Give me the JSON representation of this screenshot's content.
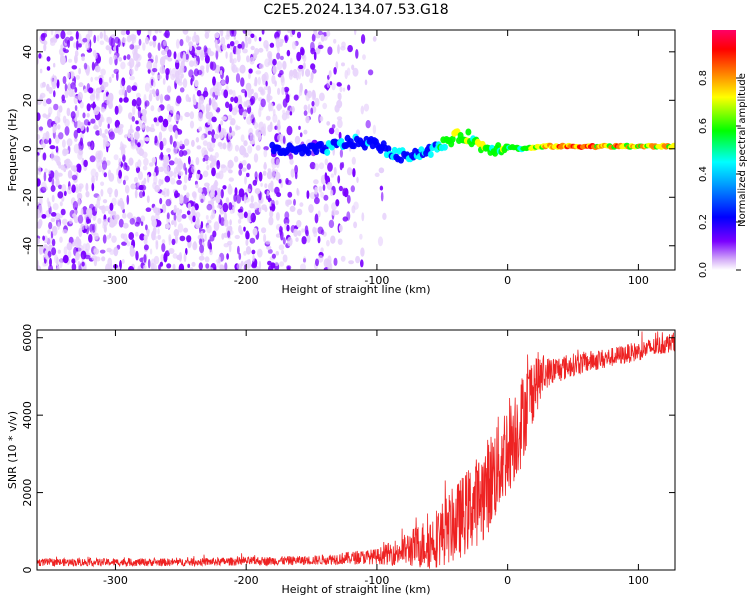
{
  "title": "C2E5.2024.134.07.53.G18",
  "chart_data": [
    {
      "type": "heatmap",
      "xlabel": "Height of straight line (km)",
      "ylabel": "Frequency (Hz)",
      "xlim": [
        -360,
        128
      ],
      "ylim": [
        -50,
        49
      ],
      "xticks": [
        "-300",
        "-200",
        "-100",
        "0",
        "100"
      ],
      "yticks": [
        "-40",
        "-20",
        "0",
        "20",
        "40"
      ],
      "colorbar": {
        "label": "Normalized spectral amplitude",
        "range": [
          0,
          1
        ],
        "ticks": [
          "0.0",
          "0.2",
          "0.4",
          "0.6",
          "0.8"
        ],
        "colormap": [
          "#d8b4f8",
          "#7a00ff",
          "#0000ff",
          "#00ffff",
          "#00ff00",
          "#ffff00",
          "#ff8000",
          "#ff0000",
          "#ff0066"
        ]
      },
      "signal_track": {
        "x": [
          -180,
          -160,
          -140,
          -120,
          -100,
          -85,
          -70,
          -55,
          -40,
          -30,
          -20,
          -10,
          0,
          10,
          30,
          60,
          90,
          110,
          128
        ],
        "frequency_hz": [
          0,
          -1,
          0,
          3,
          2,
          -3,
          -2,
          0,
          5,
          5,
          1,
          0,
          1,
          0,
          1,
          1,
          1,
          1,
          1
        ],
        "amplitude": [
          0.3,
          0.3,
          0.45,
          0.45,
          0.4,
          0.5,
          0.45,
          0.55,
          0.75,
          0.7,
          0.7,
          0.65,
          0.7,
          0.6,
          0.85,
          0.9,
          0.85,
          0.8,
          0.8
        ]
      },
      "noise_extent_x": [
        -360,
        -100
      ]
    },
    {
      "type": "line",
      "xlabel": "Height of straight line (km)",
      "ylabel": "SNR (10 * v/v)",
      "xlim": [
        -360,
        128
      ],
      "ylim": [
        0,
        6200
      ],
      "xticks": [
        "-300",
        "-200",
        "-100",
        "0",
        "100"
      ],
      "yticks": [
        "0",
        "2000",
        "4000",
        "6000"
      ],
      "color": "#ee2222",
      "trend_x": [
        -360,
        -250,
        -150,
        -100,
        -80,
        -60,
        -40,
        -20,
        -10,
        0,
        10,
        20,
        30,
        50,
        80,
        100,
        128
      ],
      "trend_y": [
        200,
        200,
        250,
        350,
        500,
        700,
        1200,
        1900,
        2500,
        3200,
        3800,
        4800,
        5100,
        5300,
        5500,
        5650,
        5900
      ],
      "noise_y": [
        100,
        100,
        120,
        200,
        400,
        700,
        1000,
        1200,
        1300,
        1300,
        1200,
        900,
        400,
        300,
        250,
        250,
        250
      ]
    }
  ]
}
